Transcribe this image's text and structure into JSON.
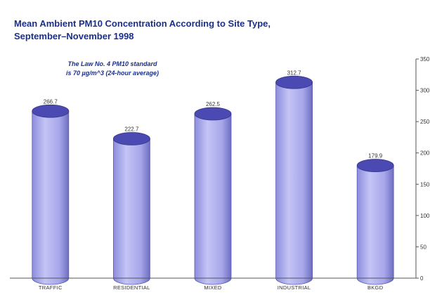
{
  "chart_data": {
    "type": "bar",
    "style": "3d-cylinder",
    "title_line1": "Mean Ambient PM10 Concentration According to Site Type,",
    "title_line2": "September–November 1998",
    "annotation_line1": "The Law No. 4 PM10 standard",
    "annotation_line2": "is 70 µg/m^3 (24-hour average)",
    "categories": [
      "TRAFFIC",
      "RESIDENTIAL",
      "MIXED",
      "INDUSTRIAL",
      "BKGD"
    ],
    "values": [
      266.7,
      222.7,
      262.5,
      312.7,
      179.9
    ],
    "value_labels": [
      "266.7",
      "222.7",
      "262.5",
      "312.7",
      "179.9"
    ],
    "y_axis_side": "right",
    "ylim": [
      0,
      350
    ],
    "y_ticks": [
      "0",
      "50",
      "100",
      "150",
      "200",
      "250",
      "300",
      "350"
    ],
    "grid": false,
    "colors": {
      "title": "#1a2f8c",
      "annotation": "#1a2f8c",
      "cylinder_face": "#b6b6ef",
      "cylinder_shade": "#7474c8",
      "cylinder_top": "#4a4ab2",
      "axis": "#555555"
    }
  }
}
